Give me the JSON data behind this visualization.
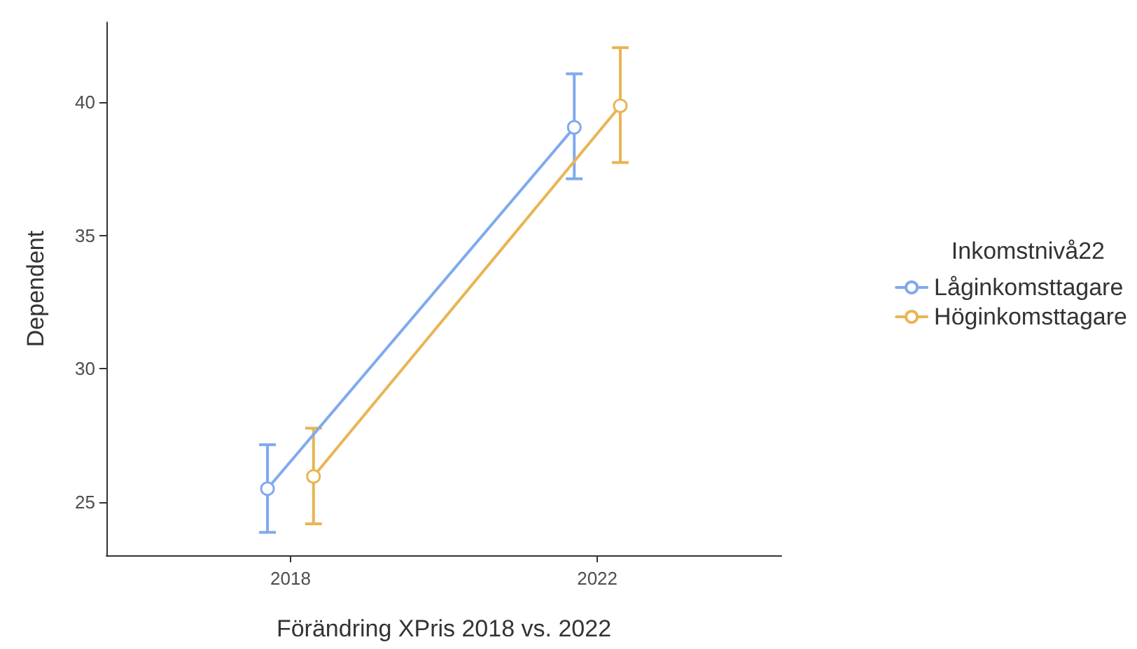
{
  "chart_data": {
    "type": "line",
    "xlabel": "Förändring XPris 2018 vs. 2022",
    "ylabel": "Dependent",
    "legend_title": "Inkomstnivå22",
    "categories": [
      "2018",
      "2022"
    ],
    "series": [
      {
        "name": "Låginkomsttagare",
        "color": "#7faaee",
        "values": [
          25.5,
          39.06
        ],
        "errors": [
          [
            23.86,
            27.15
          ],
          [
            37.13,
            41.07
          ]
        ]
      },
      {
        "name": "Höginkomsttagare",
        "color": "#e8b554",
        "values": [
          25.96,
          39.87
        ],
        "errors": [
          [
            24.18,
            27.77
          ],
          [
            37.74,
            42.05
          ]
        ]
      }
    ],
    "ylim": [
      23,
      43
    ],
    "yticks": [
      25,
      30,
      35,
      40
    ],
    "grid": false,
    "legend": "right",
    "marker": "circle",
    "line_style": "solid"
  }
}
